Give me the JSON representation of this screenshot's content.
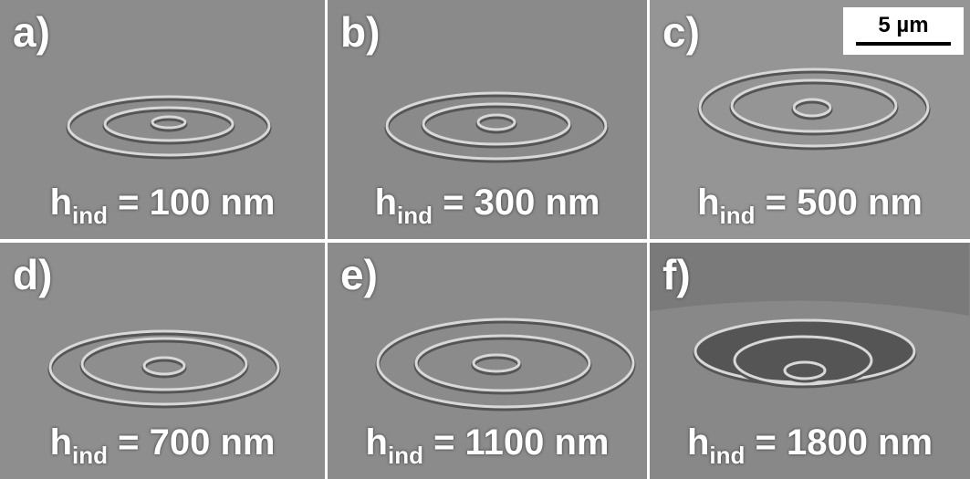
{
  "panels": [
    {
      "label": "a)",
      "symbol": "h",
      "subscript": "ind",
      "caption": " = 100 nm"
    },
    {
      "label": "b)",
      "symbol": "h",
      "subscript": "ind",
      "caption": " = 300 nm"
    },
    {
      "label": "c)",
      "symbol": "h",
      "subscript": "ind",
      "caption": " = 500 nm"
    },
    {
      "label": "d)",
      "symbol": "h",
      "subscript": "ind",
      "caption": " = 700 nm"
    },
    {
      "label": "e)",
      "symbol": "h",
      "subscript": "ind",
      "caption": " = 1100 nm"
    },
    {
      "label": "f)",
      "symbol": "h",
      "subscript": "ind",
      "caption": " = 1800 nm"
    }
  ],
  "scale_bar": "5 µm"
}
